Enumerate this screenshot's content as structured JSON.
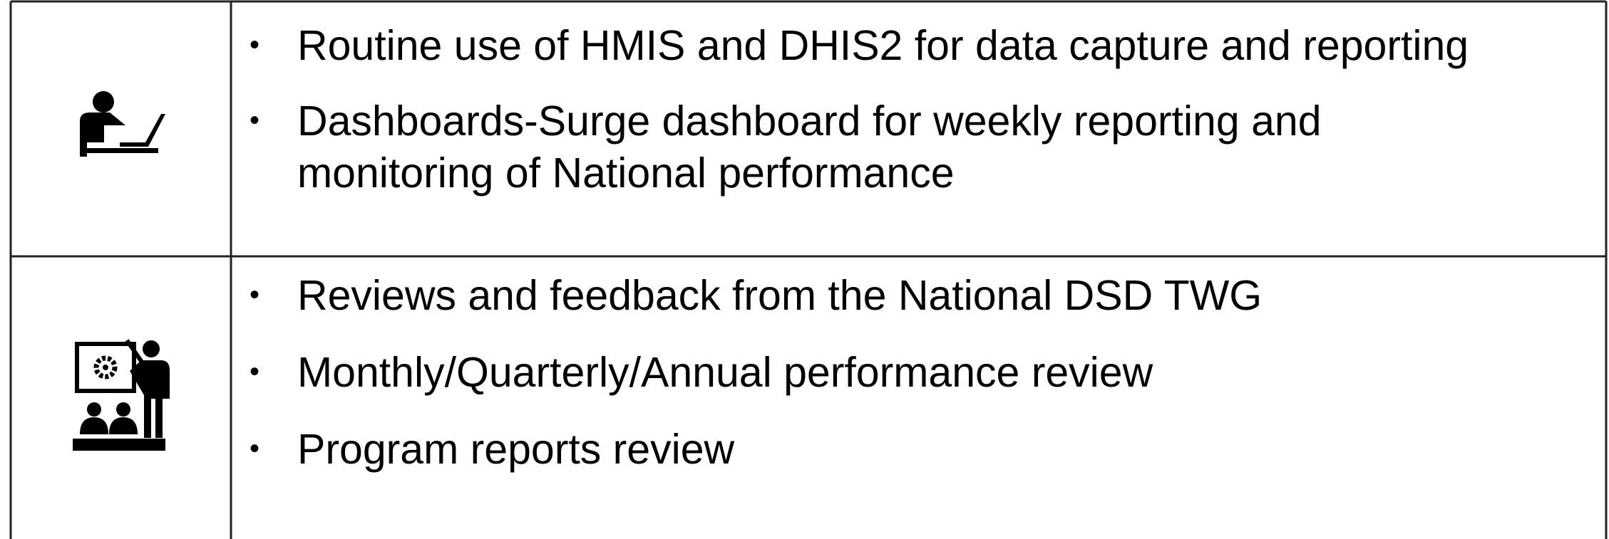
{
  "rows": [
    {
      "items": [
        [
          "Routine use of HMIS and DHIS2 for data capture and reporting"
        ],
        [
          "Dashboards-Surge dashboard for weekly reporting and",
          "monitoring of National performance"
        ]
      ]
    },
    {
      "items": [
        [
          "Reviews and feedback from the National DSD TWG"
        ],
        [
          "Monthly/Quarterly/Annual performance review"
        ],
        [
          "Program reports review"
        ]
      ]
    }
  ]
}
